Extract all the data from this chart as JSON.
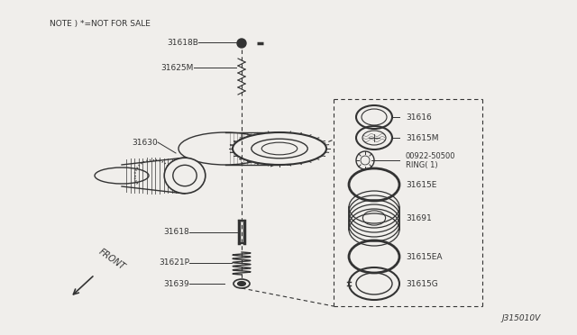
{
  "bg_color": "#f0eeeb",
  "line_color": "#333333",
  "title_note": "NOTE ) *=NOT FOR SALE",
  "part_number_footer": "J315010V",
  "front_label": "FRONT"
}
